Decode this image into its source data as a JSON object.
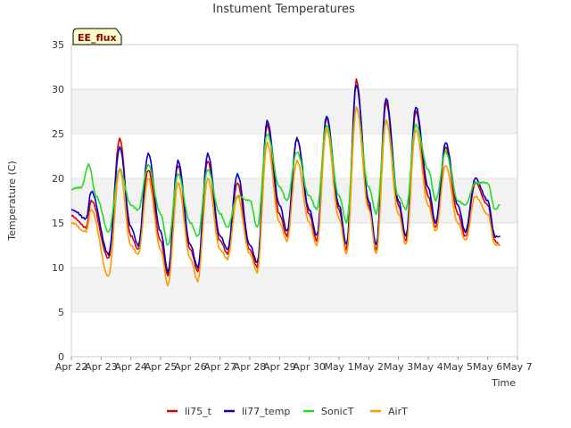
{
  "chart_data": {
    "type": "line",
    "title": "Instument Temperatures",
    "xlabel": "Time",
    "ylabel": "Temperature (C)",
    "badge": "EE_flux",
    "ylim": [
      0,
      35
    ],
    "yticks": [
      0,
      5,
      10,
      15,
      20,
      25,
      30,
      35
    ],
    "xlim": [
      "2024-04-22",
      "2024-05-07"
    ],
    "xtick_labels": [
      "Apr 22",
      "Apr 23",
      "Apr 24",
      "Apr 25",
      "Apr 26",
      "Apr 27",
      "Apr 28",
      "Apr 29",
      "Apr 30",
      "May 1",
      "May 2",
      "May 3",
      "May 4",
      "May 5",
      "May 6",
      "May 7"
    ],
    "grid": "horizontal-bands",
    "legend_position": "bottom-center",
    "series": [
      {
        "name": "li75_t",
        "color": "#dd0000",
        "x": [
          "2024-04-22T00:00",
          "2024-04-22T12:00",
          "2024-04-22T16:00",
          "2024-04-23T06:00",
          "2024-04-23T15:00",
          "2024-04-24T00:00",
          "2024-04-24T06:00",
          "2024-04-24T14:00",
          "2024-04-25T00:00",
          "2024-04-25T06:00",
          "2024-04-25T14:00",
          "2024-04-26T00:00",
          "2024-04-26T06:00",
          "2024-04-26T14:00",
          "2024-04-27T00:00",
          "2024-04-27T06:00",
          "2024-04-27T14:00",
          "2024-04-28T00:00",
          "2024-04-28T06:00",
          "2024-04-28T14:00",
          "2024-04-29T00:00",
          "2024-04-29T06:00",
          "2024-04-29T14:00",
          "2024-04-30T00:00",
          "2024-04-30T06:00",
          "2024-04-30T14:00",
          "2024-05-01T00:00",
          "2024-05-01T06:00",
          "2024-05-01T14:00",
          "2024-05-02T00:00",
          "2024-05-02T06:00",
          "2024-05-02T14:00",
          "2024-05-03T00:00",
          "2024-05-03T06:00",
          "2024-05-03T14:00",
          "2024-05-04T00:00",
          "2024-05-04T06:00",
          "2024-05-04T14:00",
          "2024-05-05T00:00",
          "2024-05-05T06:00",
          "2024-05-05T14:00",
          "2024-05-06T00:00",
          "2024-05-06T06:00",
          "2024-05-06T10:00"
        ],
        "y": [
          15.8,
          14.5,
          17.5,
          11.0,
          24.5,
          13.5,
          12.0,
          21.0,
          13.0,
          9.0,
          21.5,
          12.0,
          9.5,
          22.0,
          13.0,
          11.5,
          19.5,
          12.0,
          10.0,
          26.0,
          16.0,
          13.5,
          24.5,
          16.0,
          13.0,
          26.8,
          16.5,
          12.0,
          31.0,
          17.0,
          12.0,
          28.5,
          17.0,
          13.0,
          27.5,
          18.0,
          14.5,
          23.5,
          16.0,
          13.5,
          19.5,
          17.0,
          13.0,
          12.5
        ]
      },
      {
        "name": "li77_temp",
        "color": "#0000cc",
        "x": [
          "2024-04-22T00:00",
          "2024-04-22T12:00",
          "2024-04-22T16:00",
          "2024-04-23T06:00",
          "2024-04-23T15:00",
          "2024-04-24T00:00",
          "2024-04-24T06:00",
          "2024-04-24T14:00",
          "2024-04-25T00:00",
          "2024-04-25T06:00",
          "2024-04-25T14:00",
          "2024-04-26T00:00",
          "2024-04-26T06:00",
          "2024-04-26T14:00",
          "2024-04-27T00:00",
          "2024-04-27T06:00",
          "2024-04-27T14:00",
          "2024-04-28T00:00",
          "2024-04-28T06:00",
          "2024-04-28T14:00",
          "2024-04-29T00:00",
          "2024-04-29T06:00",
          "2024-04-29T14:00",
          "2024-04-30T00:00",
          "2024-04-30T06:00",
          "2024-04-30T14:00",
          "2024-05-01T00:00",
          "2024-05-01T06:00",
          "2024-05-01T14:00",
          "2024-05-02T00:00",
          "2024-05-02T06:00",
          "2024-05-02T14:00",
          "2024-05-03T00:00",
          "2024-05-03T06:00",
          "2024-05-03T14:00",
          "2024-05-04T00:00",
          "2024-05-04T06:00",
          "2024-05-04T14:00",
          "2024-05-05T00:00",
          "2024-05-05T06:00",
          "2024-05-05T14:00",
          "2024-05-06T00:00",
          "2024-05-06T06:00",
          "2024-05-06T10:00"
        ],
        "y": [
          16.5,
          15.5,
          18.5,
          11.5,
          23.5,
          14.5,
          12.5,
          22.8,
          14.0,
          9.5,
          22.0,
          12.5,
          10.0,
          22.8,
          13.5,
          12.0,
          20.5,
          12.5,
          10.5,
          26.5,
          17.0,
          14.0,
          24.5,
          16.5,
          13.5,
          27.0,
          17.0,
          12.5,
          30.5,
          17.5,
          12.5,
          29.0,
          17.5,
          13.5,
          28.0,
          19.0,
          15.0,
          24.0,
          17.0,
          14.0,
          20.0,
          17.5,
          13.5,
          13.5
        ]
      },
      {
        "name": "SonicT",
        "color": "#22dd22",
        "x": [
          "2024-04-22T00:00",
          "2024-04-22T08:00",
          "2024-04-22T14:00",
          "2024-04-22T20:00",
          "2024-04-23T06:00",
          "2024-04-23T15:00",
          "2024-04-24T00:00",
          "2024-04-24T06:00",
          "2024-04-24T14:00",
          "2024-04-25T00:00",
          "2024-04-25T06:00",
          "2024-04-25T14:00",
          "2024-04-26T00:00",
          "2024-04-26T06:00",
          "2024-04-26T14:00",
          "2024-04-27T00:00",
          "2024-04-27T06:00",
          "2024-04-27T14:00",
          "2024-04-28T00:00",
          "2024-04-28T06:00",
          "2024-04-28T14:00",
          "2024-04-29T00:00",
          "2024-04-29T06:00",
          "2024-04-29T14:00",
          "2024-04-30T00:00",
          "2024-04-30T06:00",
          "2024-04-30T14:00",
          "2024-05-01T00:00",
          "2024-05-01T06:00",
          "2024-05-01T14:00",
          "2024-05-02T00:00",
          "2024-05-02T06:00",
          "2024-05-02T14:00",
          "2024-05-03T00:00",
          "2024-05-03T06:00",
          "2024-05-03T14:00",
          "2024-05-04T00:00",
          "2024-05-04T06:00",
          "2024-05-04T14:00",
          "2024-05-05T00:00",
          "2024-05-05T06:00",
          "2024-05-05T14:00",
          "2024-05-06T00:00",
          "2024-05-06T06:00",
          "2024-05-06T10:00"
        ],
        "y": [
          18.8,
          19.0,
          21.5,
          18.0,
          14.0,
          21.0,
          17.0,
          16.5,
          21.5,
          16.0,
          12.5,
          20.5,
          15.0,
          13.5,
          21.0,
          16.0,
          14.5,
          18.0,
          17.5,
          14.5,
          25.0,
          19.0,
          17.5,
          23.0,
          18.0,
          16.5,
          26.0,
          18.0,
          15.0,
          28.0,
          19.0,
          16.0,
          26.5,
          18.0,
          16.5,
          26.0,
          21.0,
          17.5,
          23.0,
          17.5,
          17.0,
          19.5,
          19.5,
          16.5,
          17.0
        ]
      },
      {
        "name": "AirT",
        "color": "#ff9900",
        "x": [
          "2024-04-22T00:00",
          "2024-04-22T12:00",
          "2024-04-22T16:00",
          "2024-04-23T06:00",
          "2024-04-23T15:00",
          "2024-04-24T00:00",
          "2024-04-24T06:00",
          "2024-04-24T14:00",
          "2024-04-25T00:00",
          "2024-04-25T06:00",
          "2024-04-25T14:00",
          "2024-04-26T00:00",
          "2024-04-26T06:00",
          "2024-04-26T14:00",
          "2024-04-27T00:00",
          "2024-04-27T06:00",
          "2024-04-27T14:00",
          "2024-04-28T00:00",
          "2024-04-28T06:00",
          "2024-04-28T14:00",
          "2024-04-29T00:00",
          "2024-04-29T06:00",
          "2024-04-29T14:00",
          "2024-04-30T00:00",
          "2024-04-30T06:00",
          "2024-04-30T14:00",
          "2024-05-01T00:00",
          "2024-05-01T06:00",
          "2024-05-01T14:00",
          "2024-05-02T00:00",
          "2024-05-02T06:00",
          "2024-05-02T14:00",
          "2024-05-03T00:00",
          "2024-05-03T06:00",
          "2024-05-03T14:00",
          "2024-05-04T00:00",
          "2024-05-04T06:00",
          "2024-05-04T14:00",
          "2024-05-05T00:00",
          "2024-05-05T06:00",
          "2024-05-05T14:00",
          "2024-05-06T00:00",
          "2024-05-06T06:00",
          "2024-05-06T10:00"
        ],
        "y": [
          15.0,
          14.0,
          16.5,
          9.0,
          21.0,
          12.5,
          11.5,
          20.0,
          12.0,
          8.0,
          19.5,
          11.0,
          8.5,
          20.0,
          12.0,
          11.0,
          18.0,
          11.5,
          9.5,
          24.0,
          15.0,
          13.0,
          22.0,
          15.0,
          12.5,
          25.5,
          15.5,
          11.5,
          28.0,
          16.5,
          11.5,
          26.5,
          16.0,
          12.5,
          25.5,
          17.0,
          14.0,
          21.5,
          15.0,
          13.0,
          18.0,
          16.0,
          12.5,
          12.5
        ]
      }
    ]
  }
}
